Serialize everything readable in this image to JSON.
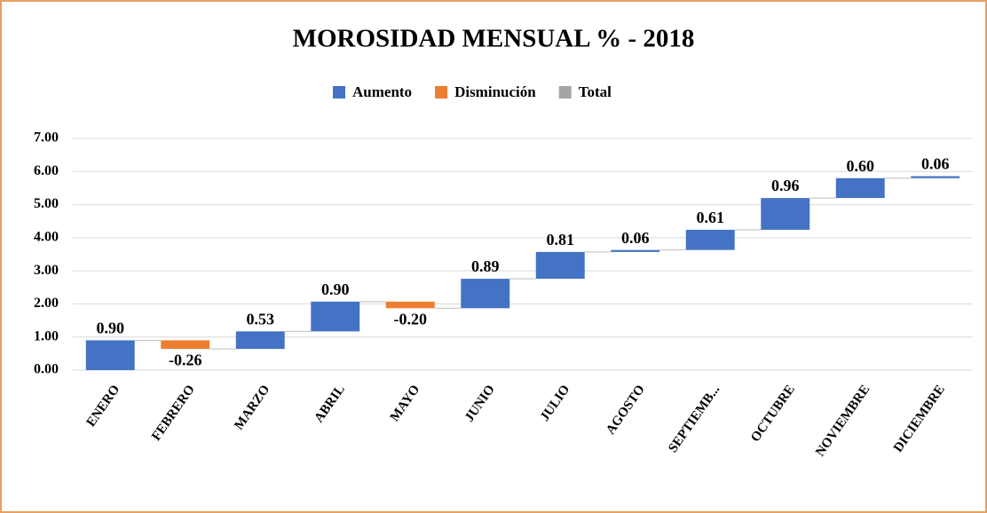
{
  "chart_data": {
    "type": "waterfall",
    "title": "MOROSIDAD MENSUAL % - 2018",
    "legend": [
      {
        "name": "Aumento",
        "color": "#4472c4"
      },
      {
        "name": "Disminución",
        "color": "#ed7d31"
      },
      {
        "name": "Total",
        "color": "#a5a5a5"
      }
    ],
    "categories": [
      "ENERO",
      "FEBRERO",
      "MARZO",
      "ABRIL",
      "MAYO",
      "JUNIO",
      "JULIO",
      "AGOSTO",
      "SEPTIEMB...",
      "OCTUBRE",
      "NOVIEMBRE",
      "DICIEMBRE"
    ],
    "values": [
      0.9,
      -0.26,
      0.53,
      0.9,
      -0.2,
      0.89,
      0.81,
      0.06,
      0.61,
      0.96,
      0.6,
      0.06
    ],
    "value_labels": [
      "0.90",
      "-0.26",
      "0.53",
      "0.90",
      "-0.20",
      "0.89",
      "0.81",
      "0.06",
      "0.61",
      "0.96",
      "0.60",
      "0.06"
    ],
    "ylim": [
      0,
      7
    ],
    "yticks": [
      {
        "value": 0,
        "label": "0.00"
      },
      {
        "value": 1,
        "label": "1.00"
      },
      {
        "value": 2,
        "label": "2.00"
      },
      {
        "value": 3,
        "label": "3.00"
      },
      {
        "value": 4,
        "label": "4.00"
      },
      {
        "value": 5,
        "label": "5.00"
      },
      {
        "value": 6,
        "label": "6.00"
      },
      {
        "value": 7,
        "label": "7.00"
      }
    ],
    "grid": true
  }
}
